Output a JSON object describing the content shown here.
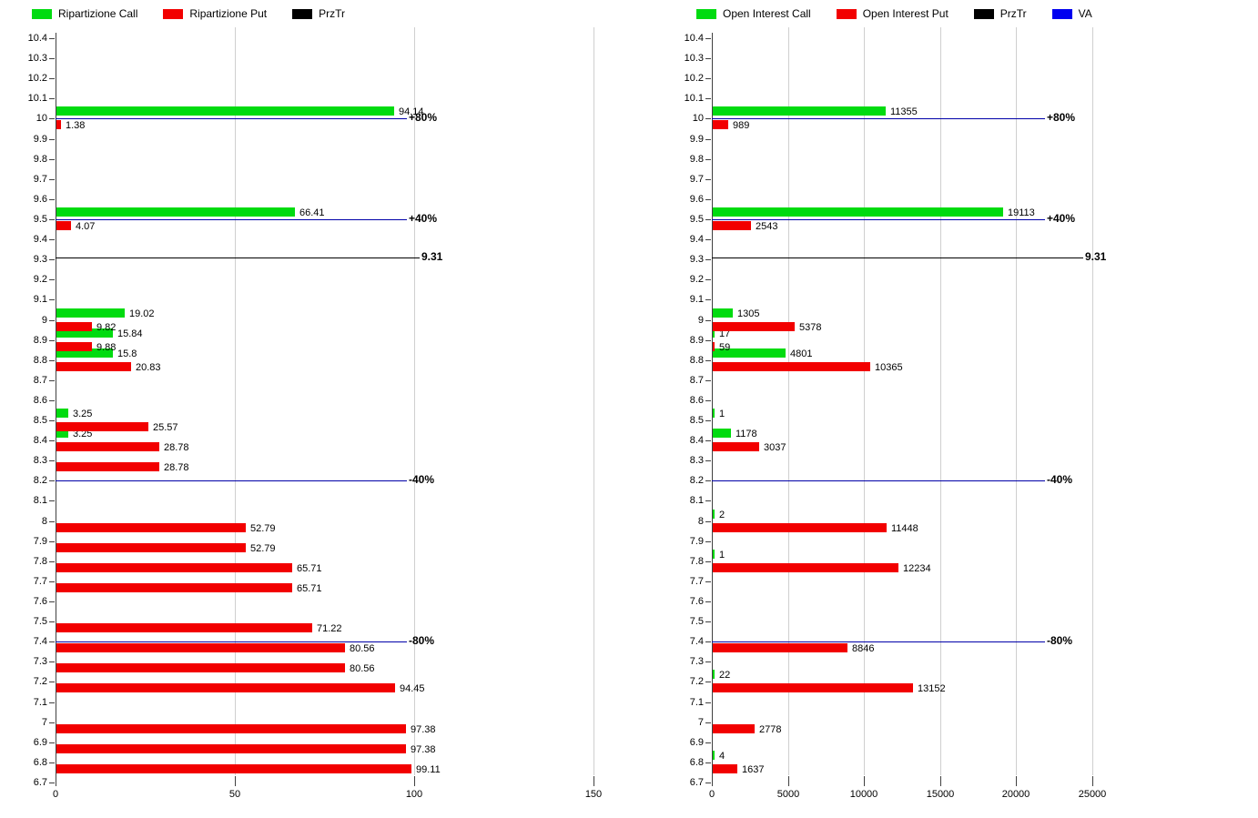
{
  "chart_data": [
    {
      "title": "",
      "type": "bar",
      "orientation": "horizontal",
      "legend": [
        {
          "label": "Ripartizione Call",
          "color": "#00DB10"
        },
        {
          "label": "Ripartizione Put",
          "color": "#F20000"
        },
        {
          "label": "PrzTr",
          "color": "#000000"
        }
      ],
      "x_ticks": [
        "0",
        "50",
        "100",
        "150"
      ],
      "x_max": 152,
      "y_axis_ticks": [
        "10.4",
        "10.3",
        "10.2",
        "10.1",
        "10",
        "9.9",
        "9.8",
        "9.7",
        "9.6",
        "9.5",
        "9.4",
        "9.3",
        "9.2",
        "9.1",
        "9",
        "8.9",
        "8.8",
        "8.7",
        "8.6",
        "8.5",
        "8.4",
        "8.3",
        "8.2",
        "8.1",
        "8",
        "7.9",
        "7.8",
        "7.7",
        "7.6",
        "7.5",
        "7.4",
        "7.3",
        "7.2",
        "7.1",
        "7",
        "6.9",
        "6.8",
        "6.7"
      ],
      "series": [
        {
          "name": "Ripartizione Call",
          "color": "#00DB10",
          "points": [
            {
              "y": "10",
              "value": 94.14
            },
            {
              "y": "9.5",
              "value": 66.41
            },
            {
              "y": "9",
              "value": 19.02
            },
            {
              "y": "8.9",
              "value": 15.84
            },
            {
              "y": "8.8",
              "value": 15.8
            },
            {
              "y": "8.5",
              "value": 3.25
            },
            {
              "y": "8.4",
              "value": 3.25
            }
          ]
        },
        {
          "name": "Ripartizione Put",
          "color": "#F20000",
          "points": [
            {
              "y": "10",
              "value": 1.38
            },
            {
              "y": "9.5",
              "value": 4.07
            },
            {
              "y": "9",
              "value": 9.82
            },
            {
              "y": "8.9",
              "value": 9.88
            },
            {
              "y": "8.8",
              "value": 20.83
            },
            {
              "y": "8.5",
              "value": 25.57
            },
            {
              "y": "8.4",
              "value": 28.78
            },
            {
              "y": "8.3",
              "value": 28.78
            },
            {
              "y": "8",
              "value": 52.79
            },
            {
              "y": "7.9",
              "value": 52.79
            },
            {
              "y": "7.8",
              "value": 65.71
            },
            {
              "y": "7.7",
              "value": 65.71
            },
            {
              "y": "7.5",
              "value": 71.22
            },
            {
              "y": "7.4",
              "value": 80.56
            },
            {
              "y": "7.3",
              "value": 80.56
            },
            {
              "y": "7.2",
              "value": 94.45
            },
            {
              "y": "7",
              "value": 97.38
            },
            {
              "y": "6.9",
              "value": 97.38
            },
            {
              "y": "6.8",
              "value": 99.11
            }
          ]
        }
      ],
      "reference_lines": [
        {
          "y": 10,
          "label": "+80%",
          "kind": "va",
          "color": "#0000A8"
        },
        {
          "y": 9.5,
          "label": "+40%",
          "kind": "va",
          "color": "#0000A8"
        },
        {
          "y": 9.31,
          "label": "9.31",
          "kind": "prztr",
          "color": "#000000"
        },
        {
          "y": 8.2,
          "label": "-40%",
          "kind": "va",
          "color": "#0000A8"
        },
        {
          "y": 7.4,
          "label": "-80%",
          "kind": "va",
          "color": "#0000A8"
        }
      ]
    },
    {
      "title": "",
      "type": "bar",
      "orientation": "horizontal",
      "legend": [
        {
          "label": "Open Interest Call",
          "color": "#00DB10"
        },
        {
          "label": "Open Interest Put",
          "color": "#F20000"
        },
        {
          "label": "PrzTr",
          "color": "#000000"
        },
        {
          "label": "VA",
          "color": "#0000F0"
        }
      ],
      "x_ticks": [
        "0",
        "5000",
        "10000",
        "15000",
        "20000",
        "25000"
      ],
      "x_max": 33000,
      "y_axis_ticks": [
        "10.4",
        "10.3",
        "10.2",
        "10.1",
        "10",
        "9.9",
        "9.8",
        "9.7",
        "9.6",
        "9.5",
        "9.4",
        "9.3",
        "9.2",
        "9.1",
        "9",
        "8.9",
        "8.8",
        "8.7",
        "8.6",
        "8.5",
        "8.4",
        "8.3",
        "8.2",
        "8.1",
        "8",
        "7.9",
        "7.8",
        "7.7",
        "7.6",
        "7.5",
        "7.4",
        "7.3",
        "7.2",
        "7.1",
        "7",
        "6.9",
        "6.8",
        "6.7"
      ],
      "series": [
        {
          "name": "Open Interest Call",
          "color": "#00DB10",
          "points": [
            {
              "y": "10",
              "value": 11355
            },
            {
              "y": "9.5",
              "value": 19113
            },
            {
              "y": "9",
              "value": 1305
            },
            {
              "y": "8.9",
              "value": 17
            },
            {
              "y": "8.8",
              "value": 4801
            },
            {
              "y": "8.5",
              "value": 1
            },
            {
              "y": "8.4",
              "value": 1178
            },
            {
              "y": "8",
              "value": 2
            },
            {
              "y": "7.8",
              "value": 1
            },
            {
              "y": "7.2",
              "value": 22
            },
            {
              "y": "6.8",
              "value": 4
            }
          ]
        },
        {
          "name": "Open Interest Put",
          "color": "#F20000",
          "points": [
            {
              "y": "10",
              "value": 989
            },
            {
              "y": "9.5",
              "value": 2543
            },
            {
              "y": "9",
              "value": 5378
            },
            {
              "y": "8.9",
              "value": 59
            },
            {
              "y": "8.8",
              "value": 10365
            },
            {
              "y": "8.4",
              "value": 3037
            },
            {
              "y": "8",
              "value": 11448
            },
            {
              "y": "7.8",
              "value": 12234
            },
            {
              "y": "7.4",
              "value": 8846
            },
            {
              "y": "7.2",
              "value": 13152
            },
            {
              "y": "7",
              "value": 2778
            },
            {
              "y": "6.8",
              "value": 1637
            }
          ]
        }
      ],
      "reference_lines": [
        {
          "y": 10,
          "label": "+80%",
          "kind": "va",
          "color": "#0000A8"
        },
        {
          "y": 9.5,
          "label": "+40%",
          "kind": "va",
          "color": "#0000A8"
        },
        {
          "y": 9.31,
          "label": "9.31",
          "kind": "prztr",
          "color": "#000000"
        },
        {
          "y": 8.2,
          "label": "-40%",
          "kind": "va",
          "color": "#0000A8"
        },
        {
          "y": 7.4,
          "label": "-80%",
          "kind": "va",
          "color": "#0000A8"
        }
      ]
    }
  ]
}
